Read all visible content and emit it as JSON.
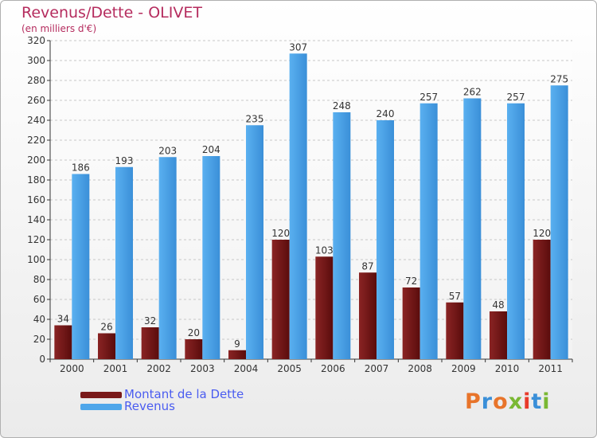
{
  "chart_data": {
    "type": "bar",
    "title": "Revenus/Dette - OLIVET",
    "subtitle": "(en milliers d'€)",
    "categories": [
      "2000",
      "2001",
      "2002",
      "2003",
      "2004",
      "2005",
      "2006",
      "2007",
      "2008",
      "2009",
      "2010",
      "2011"
    ],
    "series": [
      {
        "name": "Montant de la Dette",
        "color": "#7a1a1a",
        "values": [
          34,
          26,
          32,
          20,
          9,
          120,
          103,
          87,
          72,
          57,
          48,
          120
        ]
      },
      {
        "name": "Revenus",
        "color": "#4ea6ea",
        "values": [
          186,
          193,
          203,
          204,
          235,
          307,
          248,
          240,
          257,
          262,
          257,
          275
        ]
      }
    ],
    "ylim": [
      0,
      320
    ],
    "yticks": [
      0,
      20,
      40,
      60,
      80,
      100,
      120,
      140,
      160,
      180,
      200,
      220,
      240,
      260,
      280,
      300,
      320
    ],
    "grid": true,
    "legend_position": "bottom-left"
  },
  "logo": {
    "text": "Proxiti",
    "colors": [
      "#e8742a",
      "#3a8fd8",
      "#e8742a",
      "#7ab833",
      "#e83a2a",
      "#3a8fd8",
      "#7ab833"
    ]
  }
}
